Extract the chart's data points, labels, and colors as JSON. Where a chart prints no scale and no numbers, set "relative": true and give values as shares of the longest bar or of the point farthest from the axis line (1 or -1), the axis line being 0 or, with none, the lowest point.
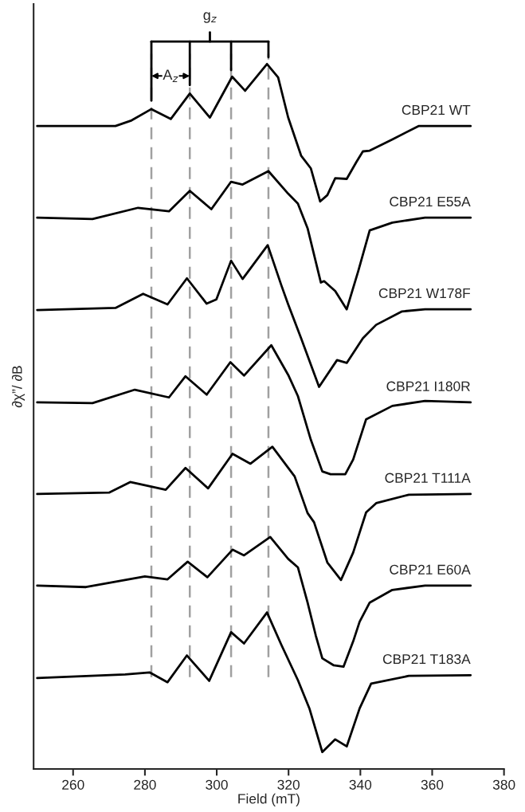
{
  "chart_data": {
    "type": "line",
    "relative": true,
    "xlabel": "Field (mT)",
    "ylabel": "∂χ”/ ∂B",
    "xlim": [
      249,
      380
    ],
    "xticks": [
      260,
      280,
      300,
      320,
      340,
      360,
      380
    ],
    "tick_labels": "x",
    "grid": false,
    "marker": "none",
    "line_style": "solid",
    "x": [
      250,
      271.8,
      276.3,
      281.8,
      287.2,
      292.5,
      298.1,
      304.3,
      307.9,
      314,
      317.1,
      319.9,
      323.5,
      326.2,
      328.8,
      330.8,
      333,
      336.2,
      338.9,
      340.7,
      342.6,
      348.9,
      356.2,
      370.7
    ],
    "series": [
      {
        "name": "CBP21 WT",
        "color": "#000000",
        "values": [
          0.912,
          0.912,
          0.92,
          0.936,
          0.922,
          0.958,
          0.924,
          0.982,
          0.962,
          1.0,
          0.981,
          0.924,
          0.87,
          0.852,
          0.805,
          0.814,
          0.838,
          0.837,
          0.861,
          0.876,
          0.877,
          0.893,
          0.912,
          0.912
        ]
      },
      {
        "name": "CBP21 E55A",
        "color": "#000000",
        "x": [
          250,
          265.4,
          278.1,
          286.7,
          292.5,
          298.5,
          304,
          307.2,
          314.4,
          319.9,
          322.6,
          325.3,
          329,
          329.9,
          333,
          336.2,
          339.4,
          342.6,
          348.9,
          358,
          370.7
        ],
        "values": [
          0.782,
          0.78,
          0.796,
          0.791,
          0.82,
          0.794,
          0.833,
          0.829,
          0.848,
          0.816,
          0.802,
          0.767,
          0.69,
          0.692,
          0.678,
          0.652,
          0.706,
          0.764,
          0.775,
          0.782,
          0.782
        ]
      },
      {
        "name": "CBP21 W178F",
        "color": "#000000",
        "x": [
          250,
          271.8,
          279.5,
          286.3,
          291.7,
          297.2,
          299.9,
          304,
          307.2,
          314.2,
          318,
          319.9,
          323.5,
          328.5,
          333.5,
          336.2,
          340.7,
          344.4,
          351.6,
          358,
          370.7
        ],
        "values": [
          0.651,
          0.654,
          0.674,
          0.659,
          0.696,
          0.66,
          0.666,
          0.721,
          0.695,
          0.743,
          0.686,
          0.659,
          0.611,
          0.542,
          0.58,
          0.576,
          0.611,
          0.63,
          0.649,
          0.652,
          0.652
        ]
      },
      {
        "name": "CBP21 I180R",
        "color": "#000000",
        "x": [
          250,
          265.4,
          277.2,
          286.7,
          291.3,
          297.2,
          303.8,
          307.6,
          315.2,
          319.9,
          322.6,
          326.2,
          329.4,
          331.7,
          335.8,
          338,
          341.6,
          348.9,
          358,
          370.7
        ],
        "values": [
          0.52,
          0.519,
          0.538,
          0.527,
          0.557,
          0.531,
          0.577,
          0.558,
          0.601,
          0.559,
          0.529,
          0.467,
          0.422,
          0.418,
          0.418,
          0.439,
          0.496,
          0.515,
          0.522,
          0.52
        ]
      },
      {
        "name": "CBP21 T111A",
        "color": "#000000",
        "x": [
          250,
          270,
          275.9,
          285.8,
          291.3,
          297.6,
          304.4,
          309.4,
          315.5,
          321.7,
          325.3,
          327.1,
          330.8,
          334.6,
          338,
          341.6,
          344.4,
          353.5,
          370.7
        ],
        "values": [
          0.39,
          0.392,
          0.407,
          0.396,
          0.427,
          0.398,
          0.447,
          0.433,
          0.457,
          0.415,
          0.363,
          0.35,
          0.293,
          0.268,
          0.307,
          0.364,
          0.377,
          0.389,
          0.39
        ]
      },
      {
        "name": "CBP21 E60A",
        "color": "#000000",
        "x": [
          250,
          263.6,
          280,
          286.3,
          291.9,
          297.4,
          304.4,
          307.6,
          314.9,
          319.9,
          322.6,
          325.3,
          327.6,
          329.4,
          332.6,
          335.3,
          338,
          339.8,
          342.6,
          348.9,
          358,
          370.7
        ],
        "values": [
          0.26,
          0.258,
          0.273,
          0.269,
          0.294,
          0.272,
          0.311,
          0.303,
          0.329,
          0.298,
          0.286,
          0.236,
          0.189,
          0.157,
          0.147,
          0.145,
          0.181,
          0.209,
          0.236,
          0.254,
          0.26,
          0.26
        ]
      },
      {
        "name": "CBP21 T183A",
        "color": "#000000",
        "x": [
          250,
          274.5,
          281.3,
          286.3,
          291.7,
          297.9,
          304,
          307.6,
          314,
          318,
          322.6,
          325.8,
          329.4,
          333,
          336.2,
          339.8,
          343,
          353.5,
          370.7
        ],
        "values": [
          0.129,
          0.134,
          0.137,
          0.123,
          0.161,
          0.125,
          0.194,
          0.178,
          0.222,
          0.176,
          0.126,
          0.086,
          0.024,
          0.042,
          0.032,
          0.086,
          0.121,
          0.132,
          0.133
        ]
      }
    ],
    "ref_lines": [
      {
        "axis": "x",
        "value": 281.8,
        "color": "#a0a0a0",
        "line_style": "dashed"
      },
      {
        "axis": "x",
        "value": 292.5,
        "color": "#a0a0a0",
        "line_style": "dashed"
      },
      {
        "axis": "x",
        "value": 304,
        "color": "#a0a0a0",
        "line_style": "dashed"
      },
      {
        "axis": "x",
        "value": 314.4,
        "color": "#a0a0a0",
        "line_style": "dashed"
      }
    ],
    "annotations": [
      "g$_{z}$",
      "A$_{z}$"
    ]
  }
}
